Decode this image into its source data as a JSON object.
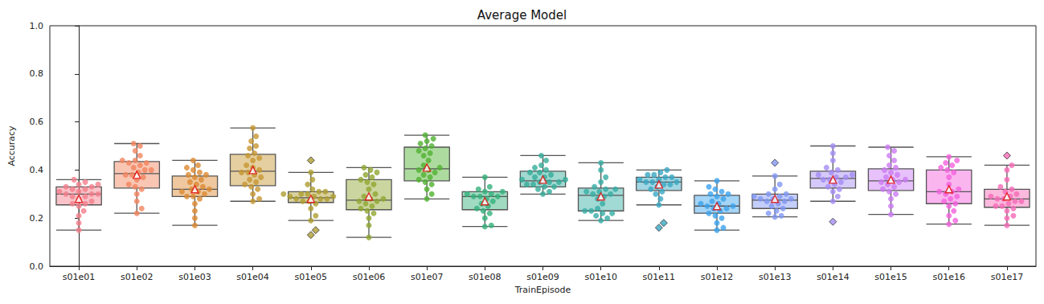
{
  "chart_data": {
    "type": "boxplot",
    "title": "Average Model",
    "x_label": "TrainEpisode",
    "y_label": "Accuracy",
    "categories": [
      "s01e01",
      "s01e02",
      "s01e03",
      "s01e04",
      "s01e05",
      "s01e06",
      "s01e07",
      "s01e08",
      "s01e09",
      "s01e10",
      "s01e11",
      "s01e12",
      "s01e13",
      "s01e14",
      "s01e15",
      "s01e16",
      "s01e17"
    ],
    "colors": [
      "#f37e8b",
      "#f3845f",
      "#dc8932",
      "#c79631",
      "#ae9d31",
      "#8fa631",
      "#50b131",
      "#33b07a",
      "#35ac9a",
      "#36ada4",
      "#38a8c3",
      "#3ba3ec",
      "#8197f4",
      "#a48cf4",
      "#cc7af4",
      "#f461dd",
      "#f66ab7"
    ],
    "boxes": [
      [
        0.15,
        0.255,
        0.3,
        0.33,
        0.36
      ],
      [
        0.22,
        0.325,
        0.385,
        0.435,
        0.51
      ],
      [
        0.17,
        0.29,
        0.32,
        0.375,
        0.44
      ],
      [
        0.27,
        0.335,
        0.395,
        0.465,
        0.575
      ],
      [
        0.19,
        0.265,
        0.285,
        0.31,
        0.39
      ],
      [
        0.12,
        0.235,
        0.275,
        0.36,
        0.41
      ],
      [
        0.28,
        0.355,
        0.405,
        0.495,
        0.545
      ],
      [
        0.165,
        0.235,
        0.29,
        0.31,
        0.37
      ],
      [
        0.3,
        0.33,
        0.355,
        0.395,
        0.46
      ],
      [
        0.19,
        0.23,
        0.295,
        0.325,
        0.43
      ],
      [
        0.255,
        0.315,
        0.35,
        0.37,
        0.4
      ],
      [
        0.15,
        0.22,
        0.25,
        0.295,
        0.355
      ],
      [
        0.205,
        0.24,
        0.275,
        0.3,
        0.375
      ],
      [
        0.27,
        0.325,
        0.365,
        0.395,
        0.5
      ],
      [
        0.215,
        0.315,
        0.355,
        0.405,
        0.495
      ],
      [
        0.175,
        0.26,
        0.31,
        0.4,
        0.455
      ],
      [
        0.17,
        0.245,
        0.28,
        0.32,
        0.42
      ]
    ],
    "means": [
      0.28,
      0.38,
      0.32,
      0.4,
      0.28,
      0.29,
      0.41,
      0.27,
      0.36,
      0.29,
      0.34,
      0.25,
      0.28,
      0.36,
      0.36,
      0.32,
      0.29
    ],
    "outliers": [
      [],
      [],
      [],
      [],
      [
        0.44,
        0.15,
        0.13
      ],
      [],
      [],
      [],
      [],
      [],
      [
        0.18,
        0.16
      ],
      [],
      [
        0.43
      ],
      [
        0.185
      ],
      [],
      [],
      [
        0.46
      ]
    ],
    "points": [
      [
        0.15,
        0.18,
        0.21,
        0.23,
        0.25,
        0.26,
        0.26,
        0.27,
        0.28,
        0.29,
        0.29,
        0.3,
        0.3,
        0.3,
        0.31,
        0.31,
        0.32,
        0.32,
        0.33,
        0.33,
        0.34,
        0.34,
        0.35,
        0.36
      ],
      [
        0.22,
        0.24,
        0.27,
        0.3,
        0.32,
        0.33,
        0.34,
        0.36,
        0.37,
        0.38,
        0.38,
        0.39,
        0.4,
        0.4,
        0.41,
        0.42,
        0.43,
        0.43,
        0.44,
        0.44,
        0.46,
        0.48,
        0.5,
        0.51
      ],
      [
        0.17,
        0.2,
        0.23,
        0.26,
        0.28,
        0.29,
        0.29,
        0.3,
        0.31,
        0.31,
        0.32,
        0.32,
        0.33,
        0.34,
        0.35,
        0.36,
        0.37,
        0.38,
        0.38,
        0.39,
        0.4,
        0.41,
        0.42,
        0.44
      ],
      [
        0.27,
        0.28,
        0.3,
        0.32,
        0.33,
        0.34,
        0.35,
        0.36,
        0.37,
        0.38,
        0.39,
        0.39,
        0.4,
        0.41,
        0.42,
        0.44,
        0.45,
        0.46,
        0.47,
        0.49,
        0.5,
        0.52,
        0.54,
        0.575
      ],
      [
        0.13,
        0.15,
        0.19,
        0.21,
        0.24,
        0.26,
        0.27,
        0.27,
        0.28,
        0.28,
        0.28,
        0.29,
        0.29,
        0.29,
        0.3,
        0.3,
        0.3,
        0.31,
        0.31,
        0.32,
        0.34,
        0.36,
        0.39,
        0.44
      ],
      [
        0.12,
        0.17,
        0.2,
        0.22,
        0.23,
        0.24,
        0.25,
        0.26,
        0.27,
        0.27,
        0.28,
        0.28,
        0.29,
        0.3,
        0.32,
        0.34,
        0.35,
        0.36,
        0.37,
        0.38,
        0.39,
        0.4,
        0.41
      ],
      [
        0.28,
        0.3,
        0.32,
        0.34,
        0.35,
        0.36,
        0.37,
        0.38,
        0.39,
        0.4,
        0.4,
        0.41,
        0.42,
        0.44,
        0.46,
        0.47,
        0.48,
        0.49,
        0.5,
        0.51,
        0.52,
        0.53,
        0.545
      ],
      [
        0.165,
        0.17,
        0.2,
        0.22,
        0.23,
        0.24,
        0.25,
        0.26,
        0.27,
        0.28,
        0.29,
        0.29,
        0.29,
        0.3,
        0.3,
        0.31,
        0.31,
        0.32,
        0.33,
        0.37
      ],
      [
        0.3,
        0.31,
        0.32,
        0.33,
        0.33,
        0.34,
        0.34,
        0.35,
        0.35,
        0.35,
        0.36,
        0.36,
        0.37,
        0.37,
        0.38,
        0.39,
        0.39,
        0.4,
        0.41,
        0.42,
        0.44,
        0.46
      ],
      [
        0.19,
        0.2,
        0.21,
        0.22,
        0.22,
        0.23,
        0.23,
        0.24,
        0.26,
        0.28,
        0.29,
        0.3,
        0.3,
        0.31,
        0.31,
        0.32,
        0.32,
        0.33,
        0.35,
        0.37,
        0.4,
        0.43
      ],
      [
        0.16,
        0.18,
        0.255,
        0.28,
        0.3,
        0.31,
        0.32,
        0.33,
        0.34,
        0.34,
        0.35,
        0.35,
        0.35,
        0.36,
        0.36,
        0.37,
        0.37,
        0.38,
        0.38,
        0.39,
        0.4
      ],
      [
        0.15,
        0.16,
        0.18,
        0.2,
        0.21,
        0.22,
        0.23,
        0.24,
        0.24,
        0.25,
        0.25,
        0.26,
        0.26,
        0.27,
        0.28,
        0.29,
        0.3,
        0.3,
        0.31,
        0.32,
        0.33,
        0.355
      ],
      [
        0.205,
        0.21,
        0.22,
        0.23,
        0.24,
        0.25,
        0.26,
        0.27,
        0.27,
        0.28,
        0.28,
        0.28,
        0.29,
        0.29,
        0.3,
        0.3,
        0.32,
        0.34,
        0.375,
        0.43
      ],
      [
        0.185,
        0.27,
        0.29,
        0.31,
        0.32,
        0.33,
        0.34,
        0.35,
        0.36,
        0.36,
        0.37,
        0.37,
        0.38,
        0.38,
        0.39,
        0.4,
        0.41,
        0.44,
        0.47,
        0.5
      ],
      [
        0.215,
        0.25,
        0.28,
        0.3,
        0.31,
        0.32,
        0.33,
        0.34,
        0.35,
        0.35,
        0.36,
        0.36,
        0.37,
        0.38,
        0.39,
        0.4,
        0.41,
        0.42,
        0.44,
        0.46,
        0.48,
        0.495
      ],
      [
        0.175,
        0.19,
        0.21,
        0.23,
        0.25,
        0.26,
        0.27,
        0.28,
        0.29,
        0.3,
        0.31,
        0.31,
        0.32,
        0.34,
        0.37,
        0.39,
        0.4,
        0.41,
        0.42,
        0.43,
        0.44,
        0.455
      ],
      [
        0.17,
        0.2,
        0.21,
        0.23,
        0.24,
        0.25,
        0.25,
        0.26,
        0.27,
        0.27,
        0.28,
        0.28,
        0.29,
        0.29,
        0.3,
        0.31,
        0.32,
        0.33,
        0.36,
        0.4,
        0.42,
        0.46
      ]
    ],
    "ylim": [
      0,
      1
    ],
    "yticks": [
      {
        "value": 0,
        "label": "0.0"
      },
      0.2,
      0.4,
      0.6,
      0.8,
      {
        "value": 1,
        "label": "1.0"
      }
    ],
    "grid": false
  }
}
